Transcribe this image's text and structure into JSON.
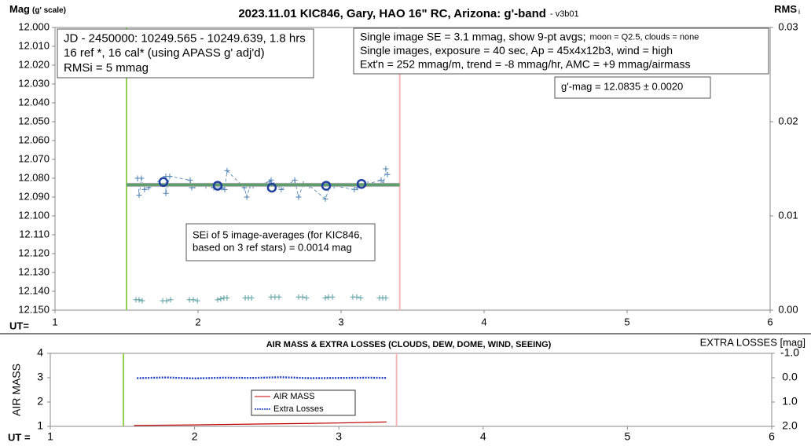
{
  "chart_data": [
    {
      "type": "scatter",
      "title": "2023.11.01 KIC846, Gary, HAO 16\" RC, Arizona: g'-band",
      "subtitle": "- v3b01",
      "ylabel": "Mag",
      "ylabel_note": "(g' scale)",
      "y2label": "RMS",
      "y2label_sub": "i",
      "xlabel": "UT=",
      "xlim": [
        1,
        6
      ],
      "xticks": [
        1,
        2,
        3,
        4,
        5,
        6
      ],
      "ylim": [
        12.15,
        12.0
      ],
      "yticks": [
        {
          "value": 12.0,
          "label": "12.000"
        },
        {
          "value": 12.01,
          "label": "12.010"
        },
        {
          "value": 12.02,
          "label": "12.020"
        },
        {
          "value": 12.03,
          "label": "12.030"
        },
        {
          "value": 12.04,
          "label": "12.040"
        },
        {
          "value": 12.05,
          "label": "12.050"
        },
        {
          "value": 12.06,
          "label": "12.060"
        },
        {
          "value": 12.07,
          "label": "12.070"
        },
        {
          "value": 12.08,
          "label": "12.080"
        },
        {
          "value": 12.09,
          "label": "12.090"
        },
        {
          "value": 12.1,
          "label": "12.100"
        },
        {
          "value": 12.11,
          "label": "12.110"
        },
        {
          "value": 12.12,
          "label": "12.120"
        },
        {
          "value": 12.13,
          "label": "12.130"
        },
        {
          "value": 12.14,
          "label": "12.140"
        },
        {
          "value": 12.15,
          "label": "12.150"
        }
      ],
      "y2lim": [
        0,
        0.03
      ],
      "y2ticks": [
        {
          "value": 0,
          "label": "0.00"
        },
        0.01,
        0.02,
        0.03
      ],
      "vlines": [
        {
          "x": 1.5,
          "color": "#92d050"
        },
        {
          "x": 3.41,
          "color": "#f4b6b6"
        }
      ],
      "series": [
        {
          "color": "#4a7fb0",
          "marker": "plus",
          "line": "dashed",
          "x": [
            1.577,
            1.588,
            1.604,
            1.626,
            1.654,
            1.775,
            1.775,
            1.802,
            1.945,
            1.956,
            1.978,
            2.055,
            2.11,
            2.165,
            2.187,
            2.203,
            2.324,
            2.341,
            2.363,
            2.385,
            2.5,
            2.511,
            2.582,
            2.676,
            2.703,
            2.736,
            2.78,
            2.89,
            2.923,
            2.951,
            3.093,
            3.115,
            3.187,
            3.28,
            3.297,
            3.313,
            3.324
          ],
          "values": [
            12.08,
            12.089,
            12.08,
            12.086,
            12.085,
            12.079,
            12.088,
            12.079,
            12.081,
            12.085,
            12.084,
            12.084,
            12.085,
            12.085,
            12.086,
            12.076,
            12.085,
            12.09,
            12.084,
            12.084,
            12.082,
            12.081,
            12.086,
            12.081,
            12.09,
            12.083,
            12.084,
            12.091,
            12.084,
            12.084,
            12.086,
            12.085,
            12.083,
            12.081,
            12.083,
            12.075,
            12.078
          ]
        },
        {
          "color": "#5a9e6a",
          "marker": "none",
          "line": "thick",
          "x": [
            1.5,
            3.41
          ],
          "values": [
            12.0835,
            12.0835
          ]
        },
        {
          "color": "#1f3f9f",
          "marker": "circle",
          "line": "none",
          "x": [
            1.758,
            2.137,
            2.516,
            2.896,
            3.143
          ],
          "values": [
            12.082,
            12.084,
            12.085,
            12.084,
            12.083
          ]
        },
        {
          "color": "#5a9ea0",
          "marker": "plus",
          "line": "none",
          "axis": "y2",
          "x": [
            1.566,
            1.588,
            1.61,
            1.753,
            1.78,
            1.808,
            1.94,
            1.967,
            1.995,
            2.137,
            2.159,
            2.181,
            2.203,
            2.33,
            2.352,
            2.374,
            2.511,
            2.538,
            2.566,
            2.703,
            2.731,
            2.758,
            2.89,
            2.912,
            2.94,
            3.082,
            3.11,
            3.137,
            3.269,
            3.291,
            3.313
          ],
          "values": [
            0.0011,
            0.0011,
            0.001,
            0.001,
            0.001,
            0.0011,
            0.0011,
            0.0011,
            0.001,
            0.0011,
            0.0012,
            0.0013,
            0.0013,
            0.0013,
            0.0013,
            0.0013,
            0.0014,
            0.0014,
            0.0014,
            0.0014,
            0.0014,
            0.0013,
            0.0013,
            0.0014,
            0.0014,
            0.0014,
            0.0014,
            0.0013,
            0.0013,
            0.0013,
            0.0013
          ]
        }
      ],
      "annotations": [
        {
          "lines": [
            [
              "JD - 2450000: 10249.565 - 10249.639, 1.8 hrs"
            ],
            [
              "16 ref *, 16 cal* (using APASS g' adj'd)"
            ],
            [
              "RMSi = 5 mmag"
            ]
          ]
        },
        {
          "lines": [
            [
              "Single image SE = 3.1 mmag, show  9-pt avgs;",
              "moon = Q2.5, clouds = none"
            ],
            [
              "Single images, exposure = 40 sec, Ap = 45x4x12b3, wind = high"
            ],
            [
              "Ext'n = 252 mmag/m, trend = -8 mmag/hr, AMC = +9 mmag/airmass"
            ]
          ]
        },
        {
          "lines": [
            [
              "g'-mag = 12.0835 ± 0.0020"
            ]
          ]
        },
        {
          "lines": [
            [
              "SEi of 5 image-averages (for KIC846,"
            ],
            [
              "based on 3 ref stars) = 0.0014 mag"
            ]
          ]
        }
      ]
    },
    {
      "type": "line",
      "title": "AIR MASS & EXTRA LOSSES (CLOUDS, DEW, DOME, WIND, SEEING)",
      "ylabel": "AIR MASS",
      "y2label": "EXTRA LOSSES [mag]",
      "xlabel": "UT =",
      "xlim": [
        1,
        6
      ],
      "xticks": [
        1,
        2,
        3,
        4,
        5,
        6
      ],
      "ylim": [
        1,
        4
      ],
      "yticks": [
        1,
        2,
        3,
        4
      ],
      "y2lim": [
        2.0,
        -1.0
      ],
      "y2ticks": [
        {
          "value": -1.0,
          "label": "-1.0"
        },
        {
          "value": 0.0,
          "label": "0.0"
        },
        {
          "value": 1.0,
          "label": "1.0"
        },
        {
          "value": 2.0,
          "label": "2.0"
        }
      ],
      "legend": "center",
      "vlines": [
        {
          "x": 1.507,
          "color": "#92d050"
        },
        {
          "x": 3.4,
          "color": "#f4b6b6"
        }
      ],
      "series": [
        {
          "name": "AIR MASS",
          "color": "#c00000",
          "marker": "none",
          "line": "solid",
          "x": [
            1.58,
            2.0,
            2.5,
            3.0,
            3.33
          ],
          "values": [
            1.04,
            1.06,
            1.1,
            1.14,
            1.18
          ]
        },
        {
          "name": "Extra Losses",
          "color": "#1f3fbf",
          "marker": "none",
          "line": "dotted",
          "axis": "y2",
          "x": [
            1.6,
            1.8,
            2.0,
            2.2,
            2.4,
            2.6,
            2.8,
            3.0,
            3.2,
            3.33
          ],
          "values": [
            0.02,
            -0.01,
            0.03,
            0.0,
            0.01,
            -0.02,
            0.02,
            0.01,
            0.0,
            0.01
          ]
        }
      ]
    }
  ]
}
